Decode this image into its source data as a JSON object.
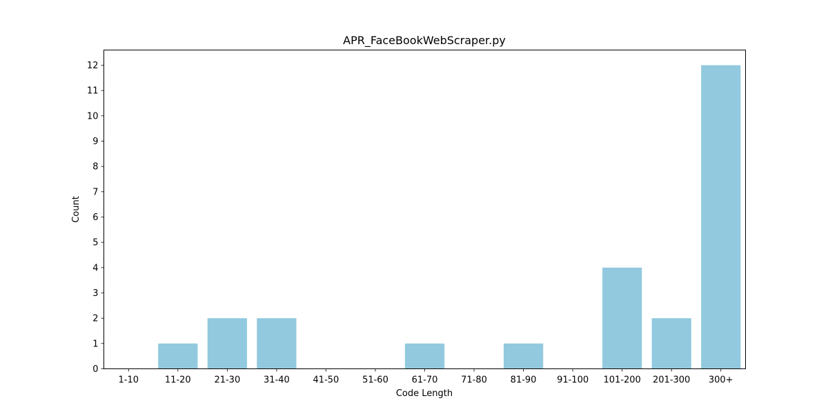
{
  "chart_data": {
    "type": "bar",
    "title": "APR_FaceBookWebScraper.py",
    "xlabel": "Code Length",
    "ylabel": "Count",
    "categories": [
      "1-10",
      "11-20",
      "21-30",
      "31-40",
      "41-50",
      "51-60",
      "61-70",
      "71-80",
      "81-90",
      "91-100",
      "101-200",
      "201-300",
      "300+"
    ],
    "values": [
      0,
      1,
      2,
      2,
      0,
      0,
      1,
      0,
      1,
      0,
      4,
      2,
      12
    ],
    "ylim": [
      0,
      12.6
    ],
    "yticks": [
      0,
      1,
      2,
      3,
      4,
      5,
      6,
      7,
      8,
      9,
      10,
      11,
      12
    ],
    "bar_color": "#92c9de",
    "grid": false,
    "legend": "none"
  }
}
